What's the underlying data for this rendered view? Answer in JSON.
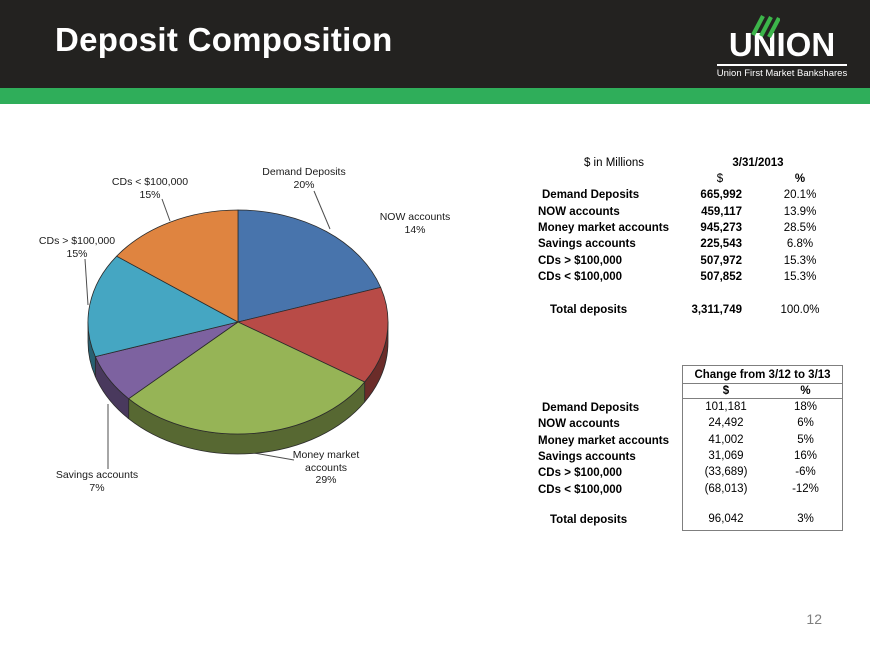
{
  "header": {
    "title": "Deposit Composition",
    "logo": {
      "wordmark": "UNION",
      "tagline": "Union First Market Bankshares"
    }
  },
  "page_number": "12",
  "colors": {
    "header_bg": "#232220",
    "accent_green": "#2fae5a",
    "logo_leaf_green": "#3cb54a",
    "table_border_gray": "#7f7f7f"
  },
  "chart_data": {
    "type": "pie",
    "style": "3d",
    "start_angle_deg": -90,
    "direction": "clockwise",
    "unit": "percent of total deposits",
    "slices": [
      {
        "label": "Demand Deposits",
        "value": 20,
        "color": "#4874AC"
      },
      {
        "label": "NOW accounts",
        "value": 14,
        "color": "#B84B47"
      },
      {
        "label": "Money market accounts",
        "value": 29,
        "color": "#96B456"
      },
      {
        "label": "Savings accounts",
        "value": 7,
        "color": "#7D62A0"
      },
      {
        "label": "CDs > $100,000",
        "value": 15,
        "color": "#45A6C2"
      },
      {
        "label": "CDs < $100,000",
        "value": 15,
        "color": "#DF8440"
      }
    ],
    "callouts": [
      {
        "name": "Demand Deposits",
        "pct": "20%"
      },
      {
        "name": "NOW accounts",
        "pct": "14%"
      },
      {
        "name": "CDs < $100,000",
        "pct": "15%"
      },
      {
        "name": "CDs > $100,000",
        "pct": "15%"
      },
      {
        "name": "Savings accounts",
        "pct": "7%"
      },
      {
        "name": "Money market accounts",
        "pct": "29%"
      }
    ]
  },
  "table_current": {
    "caption": "$ in Millions",
    "date_header": "3/31/2013",
    "dollar_header": "$",
    "pct_header": "%",
    "rows": [
      {
        "label": "Demand Deposits",
        "dollars": "665,992",
        "pct": "20.1%"
      },
      {
        "label": "NOW accounts",
        "dollars": "459,117",
        "pct": "13.9%"
      },
      {
        "label": "Money market accounts",
        "dollars": "945,273",
        "pct": "28.5%"
      },
      {
        "label": "Savings accounts",
        "dollars": "225,543",
        "pct": "6.8%"
      },
      {
        "label": "CDs > $100,000",
        "dollars": "507,972",
        "pct": "15.3%"
      },
      {
        "label": "CDs < $100,000",
        "dollars": "507,852",
        "pct": "15.3%"
      }
    ],
    "total": {
      "label": "Total deposits",
      "dollars": "3,311,749",
      "pct": "100.0%"
    }
  },
  "table_change": {
    "caption": "Change from 3/12 to 3/13",
    "dollar_header": "$",
    "pct_header": "%",
    "rows": [
      {
        "label": "Demand Deposits",
        "dollars": "101,181",
        "pct": "18%"
      },
      {
        "label": "NOW accounts",
        "dollars": "24,492",
        "pct": "6%"
      },
      {
        "label": "Money market accounts",
        "dollars": "41,002",
        "pct": "5%"
      },
      {
        "label": "Savings accounts",
        "dollars": "31,069",
        "pct": "16%"
      },
      {
        "label": "CDs > $100,000",
        "dollars": "(33,689)",
        "pct": "-6%"
      },
      {
        "label": "CDs < $100,000",
        "dollars": "(68,013)",
        "pct": "-12%"
      }
    ],
    "total": {
      "label": "Total deposits",
      "dollars": "96,042",
      "pct": "3%"
    }
  }
}
